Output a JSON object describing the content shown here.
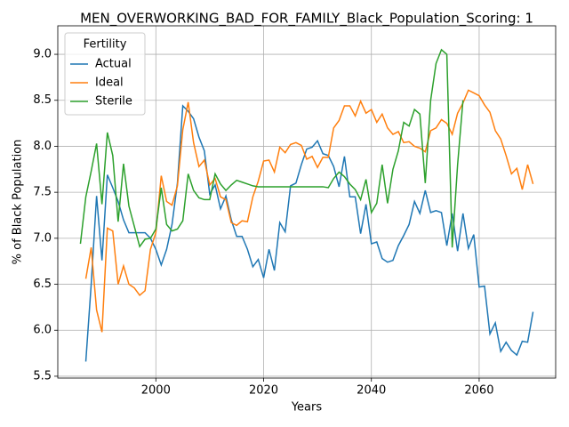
{
  "chart_data": {
    "type": "line",
    "title": "MEN_OVERWORKING_BAD_FOR_FAMILY_Black_Population_Scoring: 1",
    "xlabel": "Years",
    "ylabel": "% of Black Population",
    "legend_title": "Fertility",
    "legend": "upper left",
    "grid": true,
    "x": [
      1986,
      1987,
      1988,
      1989,
      1990,
      1991,
      1992,
      1993,
      1994,
      1995,
      1996,
      1997,
      1998,
      1999,
      2000,
      2001,
      2002,
      2003,
      2004,
      2005,
      2006,
      2007,
      2008,
      2009,
      2010,
      2011,
      2012,
      2013,
      2014,
      2015,
      2016,
      2017,
      2018,
      2019,
      2020,
      2021,
      2022,
      2023,
      2024,
      2025,
      2026,
      2027,
      2028,
      2029,
      2030,
      2031,
      2032,
      2033,
      2034,
      2035,
      2036,
      2037,
      2038,
      2039,
      2040,
      2041,
      2042,
      2043,
      2044,
      2045,
      2046,
      2047,
      2048,
      2049,
      2050,
      2051,
      2052,
      2053,
      2054,
      2055,
      2056,
      2057,
      2058,
      2059,
      2060,
      2061,
      2062,
      2063,
      2064,
      2065,
      2066,
      2067,
      2068,
      2069,
      2070
    ],
    "xlim": [
      1981.8,
      2074.2
    ],
    "xticks": [
      2000,
      2020,
      2040,
      2060
    ],
    "ylim": [
      5.48,
      9.31
    ],
    "yticks": [
      {
        "value": 5.5,
        "label": "5.5"
      },
      {
        "value": 6,
        "label": "6.0"
      },
      {
        "value": 6.5,
        "label": "6.5"
      },
      {
        "value": 7,
        "label": "7.0"
      },
      {
        "value": 7.5,
        "label": "7.5"
      },
      {
        "value": 8,
        "label": "8.0"
      },
      {
        "value": 8.5,
        "label": "8.5"
      },
      {
        "value": 9,
        "label": "9.0"
      }
    ],
    "series": [
      {
        "name": "Actual",
        "color": "#1f77b4",
        "values": [
          null,
          5.66,
          6.5,
          7.46,
          6.76,
          7.69,
          7.55,
          7.4,
          7.2,
          7.06,
          7.06,
          7.06,
          7.06,
          7.0,
          6.88,
          6.71,
          6.88,
          7.15,
          7.6,
          8.44,
          8.38,
          8.3,
          8.1,
          7.95,
          7.48,
          7.58,
          7.32,
          7.46,
          7.2,
          7.02,
          7.02,
          6.88,
          6.69,
          6.77,
          6.57,
          6.88,
          6.65,
          7.17,
          7.07,
          7.57,
          7.6,
          7.8,
          7.97,
          7.99,
          8.06,
          7.92,
          7.9,
          7.78,
          7.56,
          7.89,
          7.45,
          7.45,
          7.05,
          7.37,
          6.94,
          6.96,
          6.78,
          6.74,
          6.76,
          6.92,
          7.03,
          7.15,
          7.4,
          7.27,
          7.52,
          7.28,
          7.3,
          7.28,
          6.92,
          7.27,
          6.86,
          7.27,
          6.89,
          7.04,
          6.47,
          6.48,
          5.96,
          6.08,
          5.77,
          5.87,
          5.78,
          5.73,
          5.88,
          5.87,
          6.2
        ]
      },
      {
        "name": "Ideal",
        "color": "#ff7f0e",
        "values": [
          null,
          6.56,
          6.9,
          6.22,
          5.98,
          7.11,
          7.08,
          6.5,
          6.7,
          6.5,
          6.46,
          6.38,
          6.43,
          6.88,
          7.06,
          7.68,
          7.4,
          7.36,
          7.57,
          8.18,
          8.48,
          8.04,
          7.78,
          7.85,
          7.58,
          7.65,
          7.45,
          7.42,
          7.17,
          7.14,
          7.19,
          7.18,
          7.45,
          7.62,
          7.84,
          7.85,
          7.72,
          7.99,
          7.93,
          8.02,
          8.04,
          8.01,
          7.86,
          7.89,
          7.77,
          7.88,
          7.88,
          8.2,
          8.28,
          8.44,
          8.44,
          8.33,
          8.49,
          8.36,
          8.4,
          8.26,
          8.35,
          8.2,
          8.13,
          8.16,
          8.04,
          8.05,
          8.0,
          7.98,
          7.94,
          8.17,
          8.2,
          8.29,
          8.25,
          8.13,
          8.36,
          8.47,
          8.61,
          8.58,
          8.55,
          8.45,
          8.37,
          8.17,
          8.08,
          7.9,
          7.7,
          7.76,
          7.53,
          7.8,
          7.59
        ]
      },
      {
        "name": "Sterile",
        "color": "#2ca02c",
        "values": [
          6.94,
          7.45,
          7.73,
          8.03,
          7.37,
          8.15,
          7.9,
          7.18,
          7.81,
          7.35,
          7.13,
          6.91,
          6.99,
          7.0,
          7.1,
          7.55,
          7.15,
          7.08,
          7.1,
          7.19,
          7.7,
          7.52,
          7.44,
          7.42,
          7.42,
          7.7,
          7.59,
          7.52,
          7.58,
          7.63,
          7.61,
          7.59,
          7.57,
          7.56,
          7.56,
          7.56,
          7.56,
          7.56,
          7.56,
          7.56,
          7.56,
          7.56,
          7.56,
          7.56,
          7.56,
          7.56,
          7.55,
          7.65,
          7.72,
          7.67,
          7.59,
          7.53,
          7.42,
          7.64,
          7.28,
          7.38,
          7.8,
          7.38,
          7.75,
          7.95,
          8.26,
          8.22,
          8.4,
          8.35,
          7.6,
          8.5,
          8.9,
          9.05,
          9.0,
          6.9,
          7.8,
          8.5,
          null,
          null,
          null,
          null,
          null,
          null,
          null,
          null,
          null,
          null,
          null,
          null,
          null
        ]
      }
    ]
  }
}
